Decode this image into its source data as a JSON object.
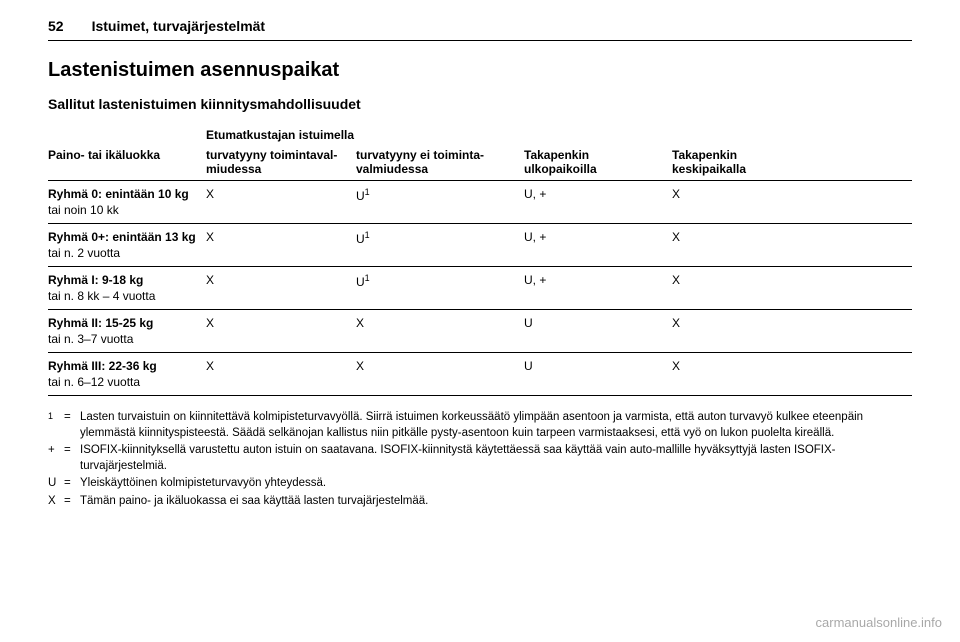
{
  "header": {
    "page_number": "52",
    "section": "Istuimet, turvajärjestelmät"
  },
  "headings": {
    "main": "Lastenistuimen asennuspaikat",
    "sub": "Sallitut lastenistuimen kiinnitysmahdollisuudet"
  },
  "table": {
    "super_header": "Etumatkustajan istuimella",
    "columns": {
      "weight": "Paino- tai ikäluokka",
      "front_active": "turvatyyny toimintaval-\nmiudessa",
      "front_inactive": "turvatyyny ei toiminta-\nvalmiudessa",
      "rear_outer": "Takapenkin\nulkopaikoilla",
      "rear_center": "Takapenkin\nkeskipaikalla"
    },
    "rows": [
      {
        "name": "Ryhmä 0: enintään 10 kg",
        "sub": "tai noin 10 kk",
        "front_active": "X",
        "front_inactive": "U¹",
        "rear_outer": "U, +",
        "rear_center": "X"
      },
      {
        "name": "Ryhmä 0+: enintään 13 kg",
        "sub": "tai n. 2 vuotta",
        "front_active": "X",
        "front_inactive": "U¹",
        "rear_outer": "U, +",
        "rear_center": "X"
      },
      {
        "name": "Ryhmä I: 9-18 kg",
        "sub": "tai n. 8 kk – 4 vuotta",
        "front_active": "X",
        "front_inactive": "U¹",
        "rear_outer": "U, +",
        "rear_center": "X"
      },
      {
        "name": "Ryhmä II: 15-25 kg",
        "sub": "tai n. 3–7 vuotta",
        "front_active": "X",
        "front_inactive": "X",
        "rear_outer": "U",
        "rear_center": "X"
      },
      {
        "name": "Ryhmä III: 22-36 kg",
        "sub": "tai n. 6–12 vuotta",
        "front_active": "X",
        "front_inactive": "X",
        "rear_outer": "U",
        "rear_center": "X"
      }
    ]
  },
  "footnotes": [
    {
      "key": "1",
      "text": "Lasten turvaistuin on kiinnitettävä kolmipisteturvavyöllä. Siirrä istuimen korkeussäätö ylimpään asentoon ja varmista, että auton turvavyö kulkee eteenpäin ylemmästä kiinnityspisteestä. Säädä selkänojan kallistus niin pitkälle pysty-asentoon kuin tarpeen varmistaaksesi, että vyö on lukon puolelta kireällä."
    },
    {
      "key": "+",
      "text": "ISOFIX-kiinnityksellä varustettu auton istuin on saatavana. ISOFIX-kiinnitystä käytettäessä saa käyttää vain auto-mallille hyväksyttyjä lasten ISOFIX-turvajärjestelmiä."
    },
    {
      "key": "U",
      "text": "Yleiskäyttöinen kolmipisteturvavyön yhteydessä."
    },
    {
      "key": "X",
      "text": "Tämän paino- ja ikäluokassa ei saa käyttää lasten turvajärjestelmää."
    }
  ],
  "watermark": "carmanualsonline.info"
}
